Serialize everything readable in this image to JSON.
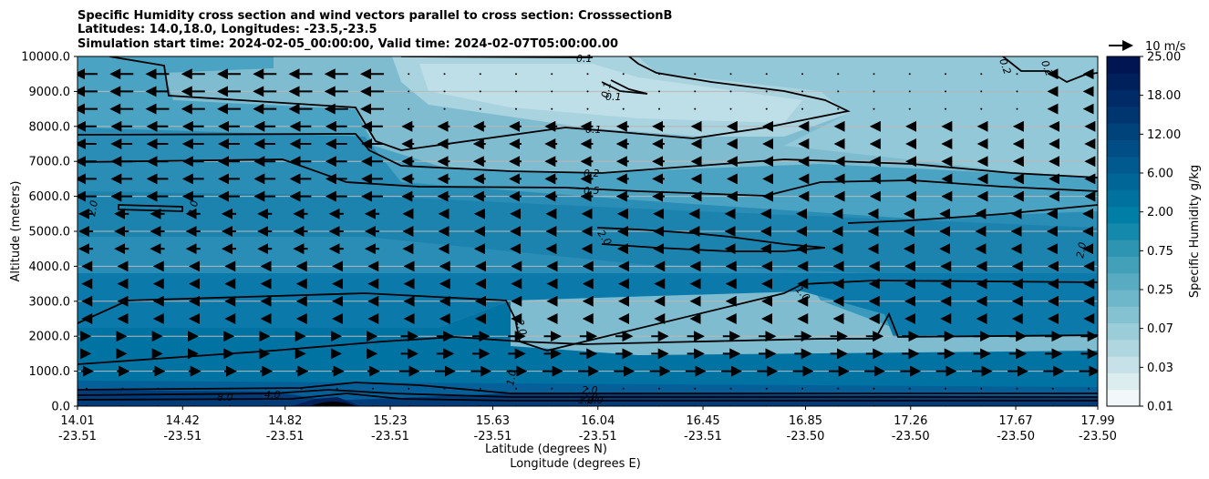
{
  "chart_data": {
    "type": "filled-contour",
    "title_lines": [
      "Specific Humidity cross section and wind vectors parallel to cross section: CrosssectionB",
      "Latitudes: 14.0,18.0, Longitudes: -23.5,-23.5",
      "Simulation start time: 2024-02-05_00:00:00, Valid time: 2024-02-07T05:00:00.00"
    ],
    "ylabel": "Altitude (meters)",
    "xlabel_lat": "Latitude (degrees N)",
    "xlabel_lon": "Longitude (degrees E)",
    "y_ticks": [
      "10000.0",
      "9000.0",
      "8000.0",
      "7000.0",
      "6000.0",
      "5000.0",
      "4000.0",
      "3000.0",
      "2000.0",
      "1000.0",
      "0.0"
    ],
    "y_range": [
      0,
      10000
    ],
    "x_range": [
      14.01,
      17.99
    ],
    "x_ticks_lat": [
      "14.01",
      "14.42",
      "14.82",
      "15.23",
      "15.63",
      "16.04",
      "16.45",
      "16.85",
      "17.26",
      "17.67",
      "17.99"
    ],
    "x_ticks_lon": [
      "-23.51",
      "-23.51",
      "-23.51",
      "-23.51",
      "-23.51",
      "-23.51",
      "-23.51",
      "-23.50",
      "-23.50",
      "-23.50",
      "-23.50"
    ],
    "x_tick_values": [
      14.01,
      14.42,
      14.82,
      15.23,
      15.63,
      16.04,
      16.45,
      16.85,
      17.26,
      17.67,
      17.99
    ],
    "grid": "horizontal",
    "colorbar_label": "Specific Humidity g/kg",
    "colorbar_ticks": [
      "25.00",
      "18.00",
      "12.00",
      "6.00",
      "2.00",
      "0.75",
      "0.25",
      "0.07",
      "0.03",
      "0.01"
    ],
    "colorbar_colors": [
      "#f2f8f9",
      "#dcedf0",
      "#c6e2e8",
      "#b0d7e0",
      "#9acdd8",
      "#84c1d1",
      "#6eb6c9",
      "#58abc1",
      "#42a0b9",
      "#2d94b1",
      "#1589ab",
      "#007ea6",
      "#00729f",
      "#006698",
      "#005a8f",
      "#004e85",
      "#00427a",
      "#003670",
      "#002b66",
      "#00205c",
      "#001552"
    ],
    "contour_levels_labeled": [
      "0.1",
      "0.1",
      "0.1",
      "0.1",
      "0.2",
      "0.2",
      "0.2",
      "0.5",
      "2.0",
      "2.0",
      "2.0",
      "2.0",
      "2.0",
      "1.0",
      "2.0",
      "1.0",
      "2.0",
      "8.0",
      "4.0",
      "1.0",
      "2.0"
    ],
    "quiver_key": "10 m/s"
  }
}
